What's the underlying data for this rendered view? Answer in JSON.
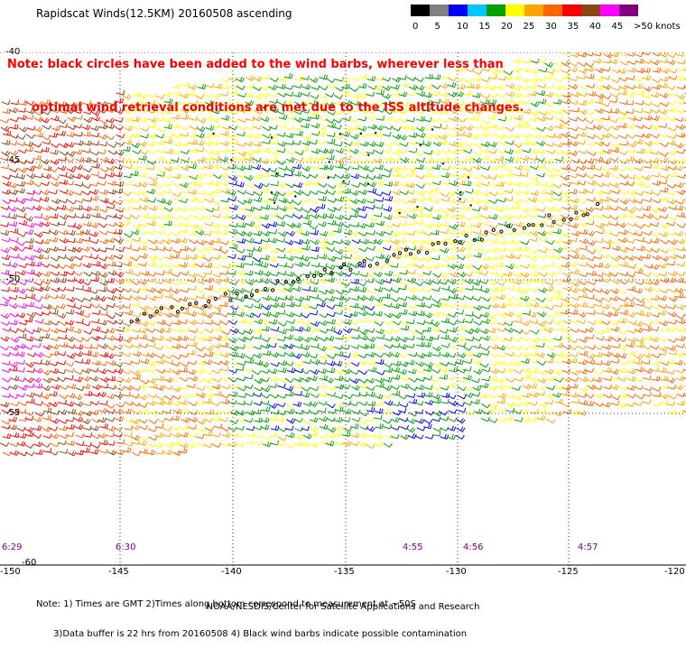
{
  "title": "Rapidscat Winds(12.5KM) 20160508 ascending",
  "note_lines": [
    "Note: black circles have been added to the wind barbs, wherever less than",
    "      optimal wind retrieval conditions are met due to the ISS altitude changes."
  ],
  "legend": {
    "ticks": [
      "0",
      "5",
      "10",
      "15",
      "20",
      "25",
      "30",
      "35",
      "40",
      "45",
      ">50 knots"
    ],
    "colors": [
      "#000000",
      "#808080",
      "#0000ff",
      "#00c8ff",
      "#00a000",
      "#ffff00",
      "#ffa500",
      "#ff6400",
      "#ff0000",
      "#8b4513",
      "#ff00ff",
      "#800080"
    ]
  },
  "map": {
    "lat_labels": [
      "-40",
      "-45",
      "-50",
      "-55",
      "-60"
    ],
    "lon_labels": [
      "-150",
      "-145",
      "-140",
      "-135",
      "-130",
      "-125",
      "-120"
    ],
    "time_labels": [
      "6:29",
      "6:30",
      "4:55",
      "4:56",
      "4:57"
    ]
  },
  "footer_lines": [
    "Note: 1) Times are GMT 2)Times along bottom correspond to measurement at ~50S",
    "      3)Data buffer is 22 hrs from 20160508 4) Black wind barbs indicate possible contamination"
  ],
  "credit": "NOAA/NESDIS/Center for Satellite Applications and Research"
}
